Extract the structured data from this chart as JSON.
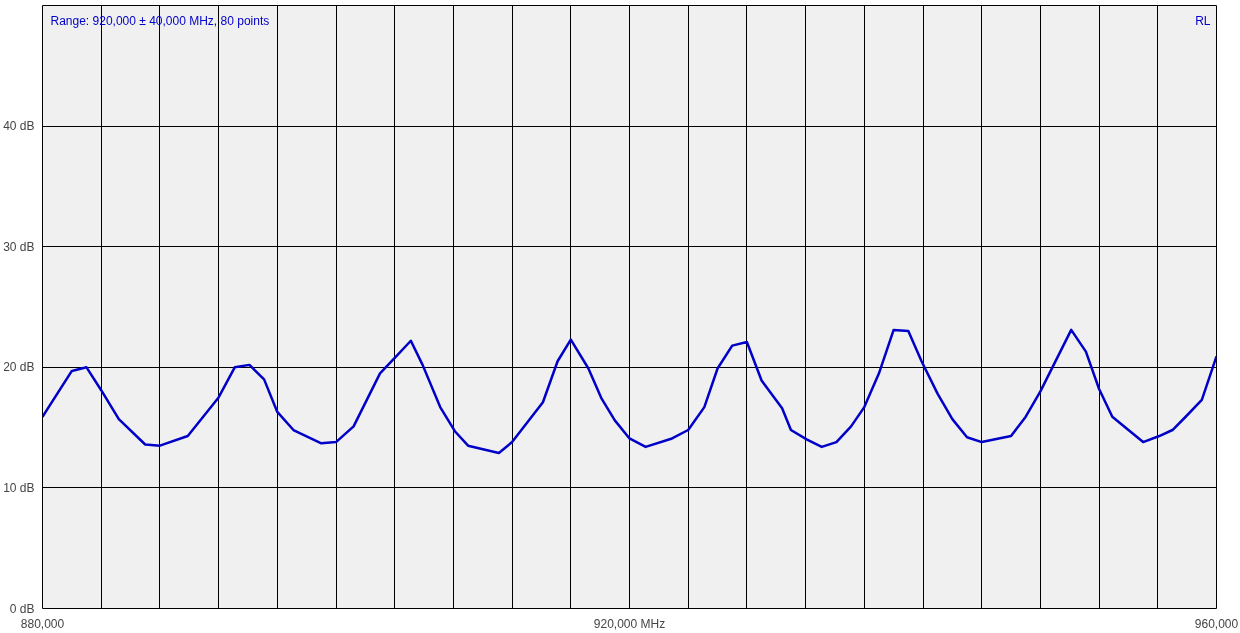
{
  "chart_data": {
    "type": "line",
    "x": [
      880000,
      882000,
      883000,
      884000,
      885200,
      887000,
      888000,
      889900,
      892000,
      893100,
      894100,
      895100,
      896000,
      897100,
      899000,
      900000,
      901200,
      903000,
      904100,
      905100,
      905900,
      907100,
      908100,
      909000,
      911100,
      912000,
      914100,
      915100,
      916000,
      917200,
      918100,
      919000,
      920000,
      921100,
      922900,
      924000,
      925100,
      926000,
      927000,
      928000,
      929000,
      930400,
      931000,
      932100,
      933100,
      934100,
      935100,
      936000,
      937000,
      938000,
      939000,
      939900,
      941000,
      942000,
      943000,
      944000,
      946000,
      947000,
      948000,
      950100,
      951100,
      952000,
      952900,
      954000,
      955000,
      956100,
      957000,
      957900,
      959000,
      960000
    ],
    "series": [
      {
        "name": "RL",
        "color": "#0000c8",
        "values": [
          15.9,
          19.7,
          20.0,
          18.1,
          15.7,
          13.6,
          13.5,
          14.3,
          17.5,
          20.0,
          20.2,
          19.0,
          16.3,
          14.8,
          13.7,
          13.8,
          15.1,
          19.5,
          20.9,
          22.2,
          20.2,
          16.7,
          14.7,
          13.5,
          12.9,
          13.8,
          17.1,
          20.5,
          22.3,
          19.9,
          17.4,
          15.6,
          14.1,
          13.4,
          14.1,
          14.8,
          16.7,
          19.9,
          21.8,
          22.1,
          18.9,
          16.6,
          14.8,
          14.0,
          13.4,
          13.8,
          15.1,
          16.7,
          19.5,
          23.1,
          23.0,
          20.5,
          17.8,
          15.7,
          14.2,
          13.8,
          14.3,
          15.9,
          18.0,
          23.1,
          21.3,
          18.2,
          15.9,
          14.8,
          13.8,
          14.3,
          14.8,
          15.9,
          17.3,
          20.9
        ]
      }
    ],
    "xlim": [
      880000,
      960000
    ],
    "xticks": [
      {
        "value": 880000,
        "label": "880,000"
      },
      {
        "value": 884000,
        "label": null
      },
      {
        "value": 888000,
        "label": null
      },
      {
        "value": 892000,
        "label": null
      },
      {
        "value": 896000,
        "label": null
      },
      {
        "value": 900000,
        "label": null
      },
      {
        "value": 904000,
        "label": null
      },
      {
        "value": 908000,
        "label": null
      },
      {
        "value": 912000,
        "label": null
      },
      {
        "value": 916000,
        "label": null
      },
      {
        "value": 920000,
        "label": "920,000 MHz"
      },
      {
        "value": 924000,
        "label": null
      },
      {
        "value": 928000,
        "label": null
      },
      {
        "value": 932000,
        "label": null
      },
      {
        "value": 936000,
        "label": null
      },
      {
        "value": 940000,
        "label": null
      },
      {
        "value": 944000,
        "label": null
      },
      {
        "value": 948000,
        "label": null
      },
      {
        "value": 952000,
        "label": null
      },
      {
        "value": 956000,
        "label": null
      },
      {
        "value": 960000,
        "label": "960,000"
      }
    ],
    "ylim": [
      0,
      50
    ],
    "yticks": [
      {
        "value": 0,
        "label": "0 dB"
      },
      {
        "value": 10,
        "label": "10 dB"
      },
      {
        "value": 20,
        "label": "20 dB"
      },
      {
        "value": 30,
        "label": "30 dB"
      },
      {
        "value": 40,
        "label": "40 dB"
      }
    ],
    "annotations": [
      "Range: 920,000 ± 40,000 MHz, 80 points"
    ],
    "grid": true,
    "legend": "top right",
    "marker": "none",
    "line_style": "solid"
  }
}
